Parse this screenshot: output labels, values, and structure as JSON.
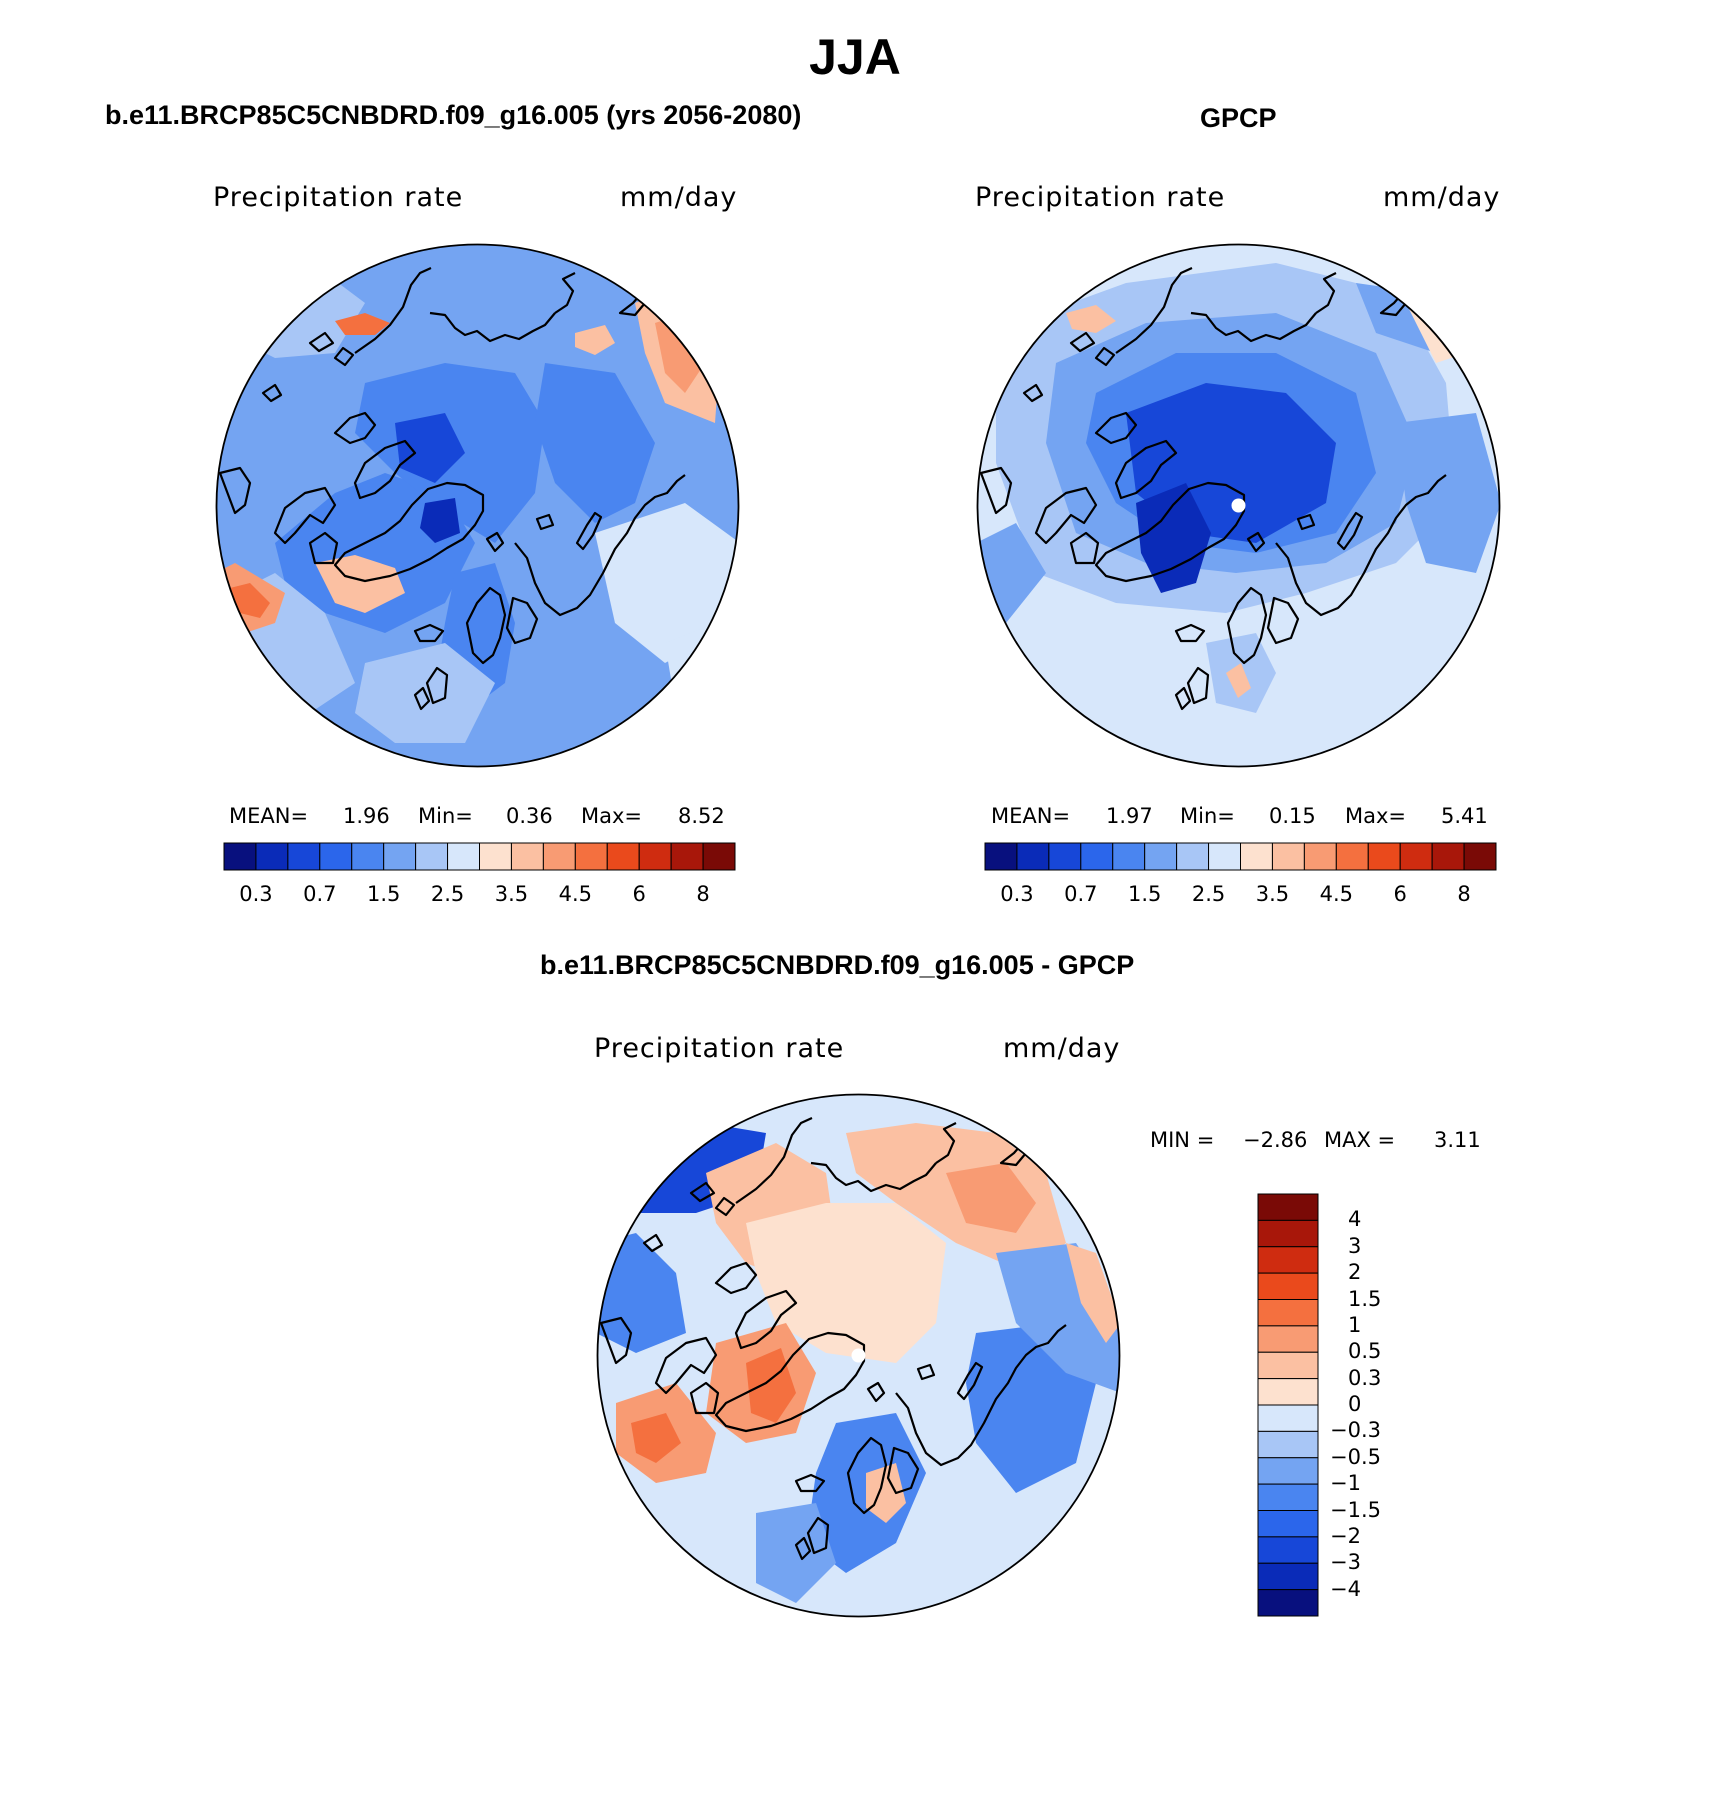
{
  "figure": {
    "title": "JJA",
    "colors": {
      "map_background": "#dbe8fb",
      "coast": "#000000",
      "scale": [
        "#08107e",
        "#0a2bb8",
        "#1747d8",
        "#2b66eb",
        "#4a85f0",
        "#74a4f2",
        "#a8c6f6",
        "#d7e7fb",
        "#fde1cf",
        "#fbc0a2",
        "#f89b73",
        "#f4703f",
        "#ea4a1c",
        "#cf2c10",
        "#a8170a",
        "#7a0a06"
      ],
      "diff_scale": [
        "#7a0a06",
        "#a8170a",
        "#cf2c10",
        "#ea4a1c",
        "#f4703f",
        "#f89b73",
        "#fbc0a2",
        "#fde1cf",
        "#d7e7fb",
        "#a8c6f6",
        "#74a4f2",
        "#4a85f0",
        "#2b66eb",
        "#1747d8",
        "#0a2bb8",
        "#08107e"
      ]
    },
    "panels": [
      {
        "id": "model",
        "title": "b.e11.BRCP85C5CNBDRD.f09_g16.005 (yrs 2056-2080)",
        "variable": "Precipitation rate",
        "units": "mm/day",
        "mean_label": "MEAN=",
        "mean": "1.96",
        "min_label": "Min=",
        "min": "0.36",
        "max_label": "Max=",
        "max": "8.52",
        "colorbar_ticks": [
          "0.3",
          "0.7",
          "1.5",
          "2.5",
          "3.5",
          "4.5",
          "6",
          "8"
        ]
      },
      {
        "id": "obs",
        "title": "GPCP",
        "variable": "Precipitation rate",
        "units": "mm/day",
        "mean_label": "MEAN=",
        "mean": "1.97",
        "min_label": "Min=",
        "min": "0.15",
        "max_label": "Max=",
        "max": "5.41",
        "colorbar_ticks": [
          "0.3",
          "0.7",
          "1.5",
          "2.5",
          "3.5",
          "4.5",
          "6",
          "8"
        ]
      },
      {
        "id": "diff",
        "title": "b.e11.BRCP85C5CNBDRD.f09_g16.005 - GPCP",
        "variable": "Precipitation rate",
        "units": "mm/day",
        "min_label": "MIN =",
        "min": "−2.86",
        "max_label": "MAX =",
        "max": "3.11",
        "colorbar_ticks": [
          "4",
          "3",
          "2",
          "1.5",
          "1",
          "0.5",
          "0.3",
          "0",
          "−0.3",
          "−0.5",
          "−1",
          "−1.5",
          "−2",
          "−3",
          "−4"
        ]
      }
    ]
  }
}
